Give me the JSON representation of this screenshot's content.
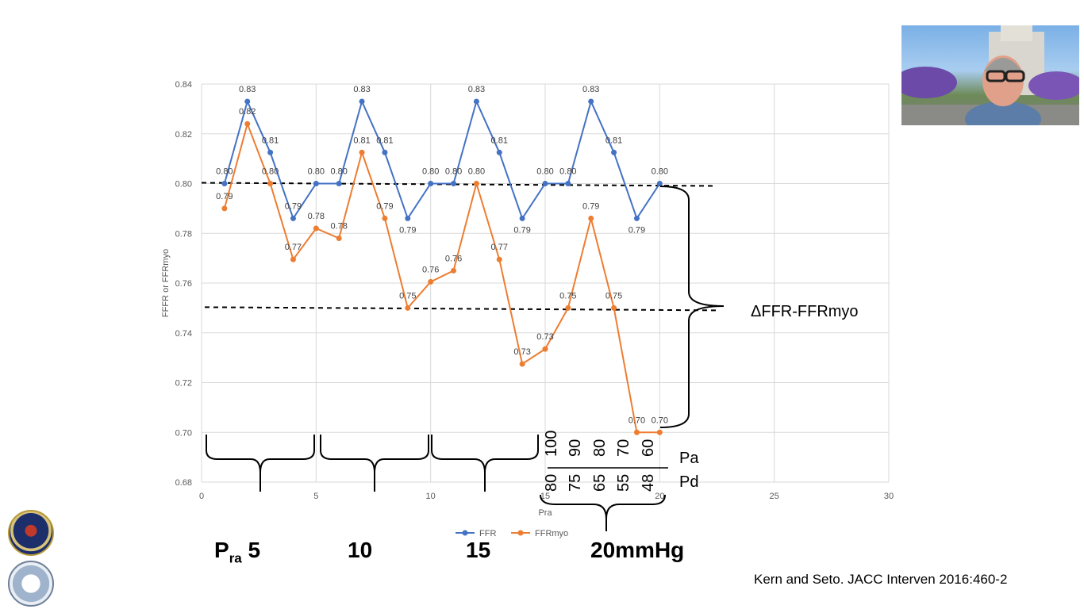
{
  "chart_data": {
    "type": "line",
    "title": "",
    "xlabel": "Pra",
    "ylabel": "FFFR or FFRmyo",
    "xlim": [
      0,
      30
    ],
    "ylim": [
      0.68,
      0.84
    ],
    "x_ticks": [
      "0",
      "5",
      "10",
      "15",
      "20",
      "25",
      "30"
    ],
    "y_ticks": [
      "0.68",
      "0.70",
      "0.72",
      "0.74",
      "0.76",
      "0.78",
      "0.80",
      "0.82",
      "0.84"
    ],
    "grid": true,
    "legend_position": "bottom",
    "x": [
      1,
      2,
      3,
      4,
      5,
      6,
      7,
      8,
      9,
      10,
      11,
      12,
      13,
      14,
      15,
      16,
      17,
      18,
      19,
      20
    ],
    "series": [
      {
        "name": "FFR",
        "color": "#4472c4",
        "values": [
          0.8,
          0.833,
          0.8125,
          0.786,
          0.8,
          0.8,
          0.833,
          0.8125,
          0.786,
          0.8,
          0.8,
          0.833,
          0.8125,
          0.786,
          0.8,
          0.8,
          0.833,
          0.8125,
          0.786,
          0.8
        ],
        "labels": [
          "0.80",
          "0.83",
          "0.81",
          "",
          "0.80",
          "0.80",
          "0.83",
          "0.81",
          "0.79",
          "0.80",
          "0.80",
          "0.83",
          "0.81",
          "0.79",
          "0.80",
          "0.80",
          "0.83",
          "0.81",
          "0.79",
          "0.80"
        ]
      },
      {
        "name": "FFRmyo",
        "color": "#ed7d31",
        "values": [
          0.79,
          0.824,
          0.8,
          0.7695,
          0.782,
          0.778,
          0.8125,
          0.786,
          0.75,
          0.7605,
          0.765,
          0.8,
          0.7695,
          0.7275,
          0.7335,
          0.75,
          0.786,
          0.75,
          0.7,
          0.7
        ],
        "labels": [
          "0.79",
          "0.82",
          "0.80",
          "0.77",
          "0.78",
          "0.78",
          "0.81",
          "0.79",
          "0.75",
          "0.76",
          "0.76",
          "0.80",
          "0.77",
          "0.73",
          "0.73",
          "0.75",
          "0.79",
          "0.75",
          "0.70",
          "0.70"
        ]
      }
    ],
    "extra_label": {
      "text": "0.79",
      "series": 0,
      "index": 3
    },
    "annotations": {
      "delta_label": "ΔFFR-FFRmyo",
      "pa_label": "Pa",
      "pd_label": "Pd",
      "pa_values": [
        "100",
        "90",
        "80",
        "70",
        "60"
      ],
      "pd_values": [
        "80",
        "75",
        "65",
        "55",
        "48"
      ],
      "upper_dashed_y": 0.8,
      "lower_dashed_y": 0.75
    }
  },
  "slide": {
    "pressure_labels": {
      "p_letter": "P",
      "p_sub": "ra",
      "first": "5",
      "second": "10",
      "third": "15",
      "fourth": "20mmHg"
    },
    "citation": "Kern and Seto.  JACC Interven 2016:460-2"
  }
}
